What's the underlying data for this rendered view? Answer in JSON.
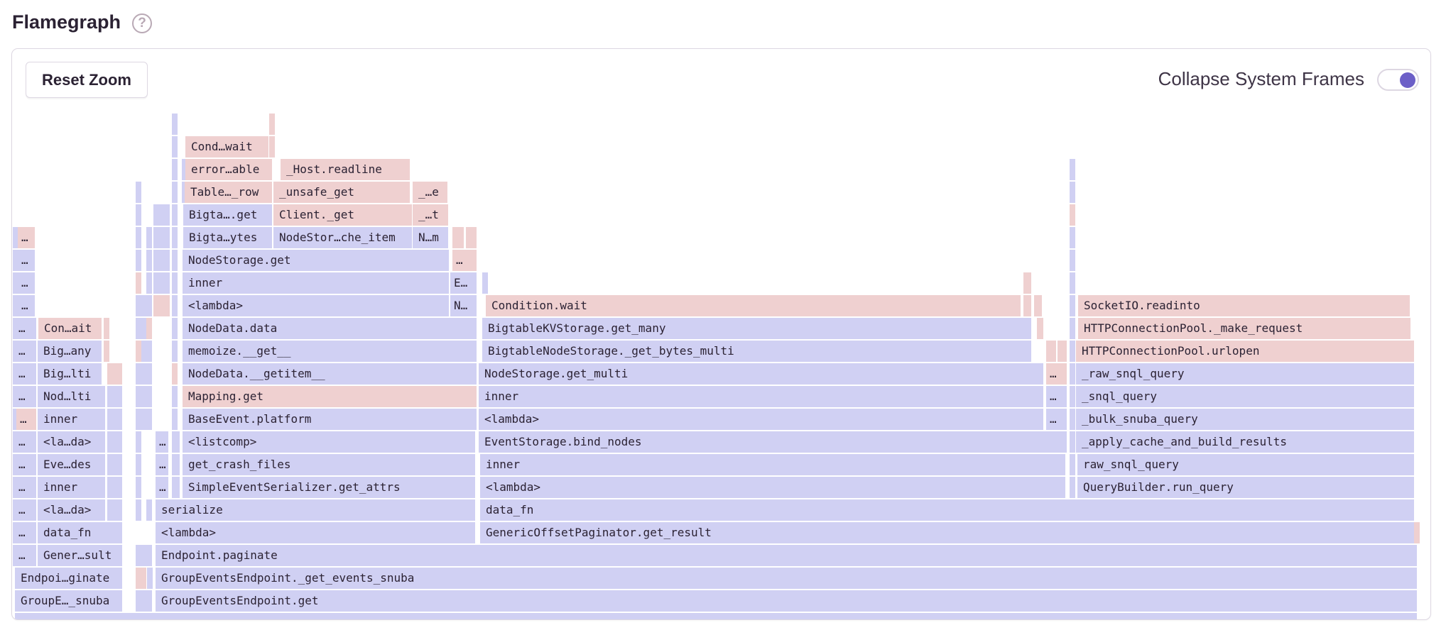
{
  "header": {
    "title": "Flamegraph",
    "help_icon": "question-circle-icon"
  },
  "toolbar": {
    "reset_zoom_label": "Reset Zoom",
    "collapse_label": "Collapse System Frames",
    "collapse_enabled": true
  },
  "colors": {
    "blue": "#d0d0f3",
    "red": "#efd0d0",
    "accent": "#6c5fc7"
  },
  "flamegraph": {
    "frames": [
      {
        "label": "GroupE…_snuba",
        "color": "blue"
      },
      {
        "label": "GroupEventsEndpoint.get",
        "color": "blue"
      },
      {
        "label": "Endpoi…ginate",
        "color": "blue"
      },
      {
        "label": "GroupEventsEndpoint._get_events_snuba",
        "color": "blue"
      },
      {
        "label": "…",
        "color": "blue"
      },
      {
        "label": "Gener…sult",
        "color": "blue"
      },
      {
        "label": "Endpoint.paginate",
        "color": "blue"
      },
      {
        "label": "…",
        "color": "blue"
      },
      {
        "label": "data_fn",
        "color": "blue"
      },
      {
        "label": "<lambda>",
        "color": "blue"
      },
      {
        "label": "GenericOffsetPaginator.get_result",
        "color": "blue"
      },
      {
        "label": "…",
        "color": "blue"
      },
      {
        "label": "<la…da>",
        "color": "blue"
      },
      {
        "label": "serialize",
        "color": "blue"
      },
      {
        "label": "data_fn",
        "color": "blue"
      },
      {
        "label": "…",
        "color": "blue"
      },
      {
        "label": "inner",
        "color": "blue"
      },
      {
        "label": "…",
        "color": "blue"
      },
      {
        "label": "SimpleEventSerializer.get_attrs",
        "color": "blue"
      },
      {
        "label": "<lambda>",
        "color": "blue"
      },
      {
        "label": "QueryBuilder.run_query",
        "color": "blue"
      },
      {
        "label": "…",
        "color": "blue"
      },
      {
        "label": "Eve…des",
        "color": "blue"
      },
      {
        "label": "…",
        "color": "blue"
      },
      {
        "label": "get_crash_files",
        "color": "blue"
      },
      {
        "label": "inner",
        "color": "blue"
      },
      {
        "label": "raw_snql_query",
        "color": "blue"
      },
      {
        "label": "…",
        "color": "blue"
      },
      {
        "label": "<la…da>",
        "color": "blue"
      },
      {
        "label": "…",
        "color": "blue"
      },
      {
        "label": "<listcomp>",
        "color": "blue"
      },
      {
        "label": "EventStorage.bind_nodes",
        "color": "blue"
      },
      {
        "label": "_apply_cache_and_build_results",
        "color": "blue"
      },
      {
        "label": "…",
        "color": "red"
      },
      {
        "label": "inner",
        "color": "blue"
      },
      {
        "label": "BaseEvent.platform",
        "color": "blue"
      },
      {
        "label": "<lambda>",
        "color": "blue"
      },
      {
        "label": "…",
        "color": "blue"
      },
      {
        "label": "_bulk_snuba_query",
        "color": "blue"
      },
      {
        "label": "…",
        "color": "blue"
      },
      {
        "label": "Nod…lti",
        "color": "blue"
      },
      {
        "label": "Mapping.get",
        "color": "red"
      },
      {
        "label": "inner",
        "color": "blue"
      },
      {
        "label": "…",
        "color": "blue"
      },
      {
        "label": "_snql_query",
        "color": "blue"
      },
      {
        "label": "…",
        "color": "blue"
      },
      {
        "label": "Big…lti",
        "color": "blue"
      },
      {
        "label": "NodeData.__getitem__",
        "color": "blue"
      },
      {
        "label": "NodeStorage.get_multi",
        "color": "blue"
      },
      {
        "label": "…",
        "color": "red"
      },
      {
        "label": "_raw_snql_query",
        "color": "blue"
      },
      {
        "label": "…",
        "color": "blue"
      },
      {
        "label": "Big…any",
        "color": "blue"
      },
      {
        "label": "memoize.__get__",
        "color": "blue"
      },
      {
        "label": "BigtableNodeStorage._get_bytes_multi",
        "color": "blue"
      },
      {
        "label": "HTTPConnectionPool.urlopen",
        "color": "red"
      },
      {
        "label": "…",
        "color": "blue"
      },
      {
        "label": "Con…ait",
        "color": "red"
      },
      {
        "label": "NodeData.data",
        "color": "blue"
      },
      {
        "label": "BigtableKVStorage.get_many",
        "color": "blue"
      },
      {
        "label": "HTTPConnectionPool._make_request",
        "color": "red"
      },
      {
        "label": "…",
        "color": "blue"
      },
      {
        "label": "<lambda>",
        "color": "blue"
      },
      {
        "label": "N…",
        "color": "blue"
      },
      {
        "label": "Condition.wait",
        "color": "red"
      },
      {
        "label": "SocketIO.readinto",
        "color": "red"
      },
      {
        "label": "…",
        "color": "blue"
      },
      {
        "label": "inner",
        "color": "blue"
      },
      {
        "label": "E…",
        "color": "blue"
      },
      {
        "label": "…",
        "color": "blue"
      },
      {
        "label": "NodeStorage.get",
        "color": "blue"
      },
      {
        "label": "…",
        "color": "red"
      },
      {
        "label": "…",
        "color": "red"
      },
      {
        "label": "Bigta…ytes",
        "color": "blue"
      },
      {
        "label": "NodeStor…che_item",
        "color": "blue"
      },
      {
        "label": "N…m",
        "color": "blue"
      },
      {
        "label": "Bigta….get",
        "color": "blue"
      },
      {
        "label": "Client._get",
        "color": "red"
      },
      {
        "label": "_…t",
        "color": "red"
      },
      {
        "label": "Table…_row",
        "color": "red"
      },
      {
        "label": "_unsafe_get",
        "color": "red"
      },
      {
        "label": "_…e",
        "color": "red"
      },
      {
        "label": "error…able",
        "color": "red"
      },
      {
        "label": "_Host.readline",
        "color": "red"
      },
      {
        "label": "Cond…wait",
        "color": "red"
      }
    ]
  }
}
